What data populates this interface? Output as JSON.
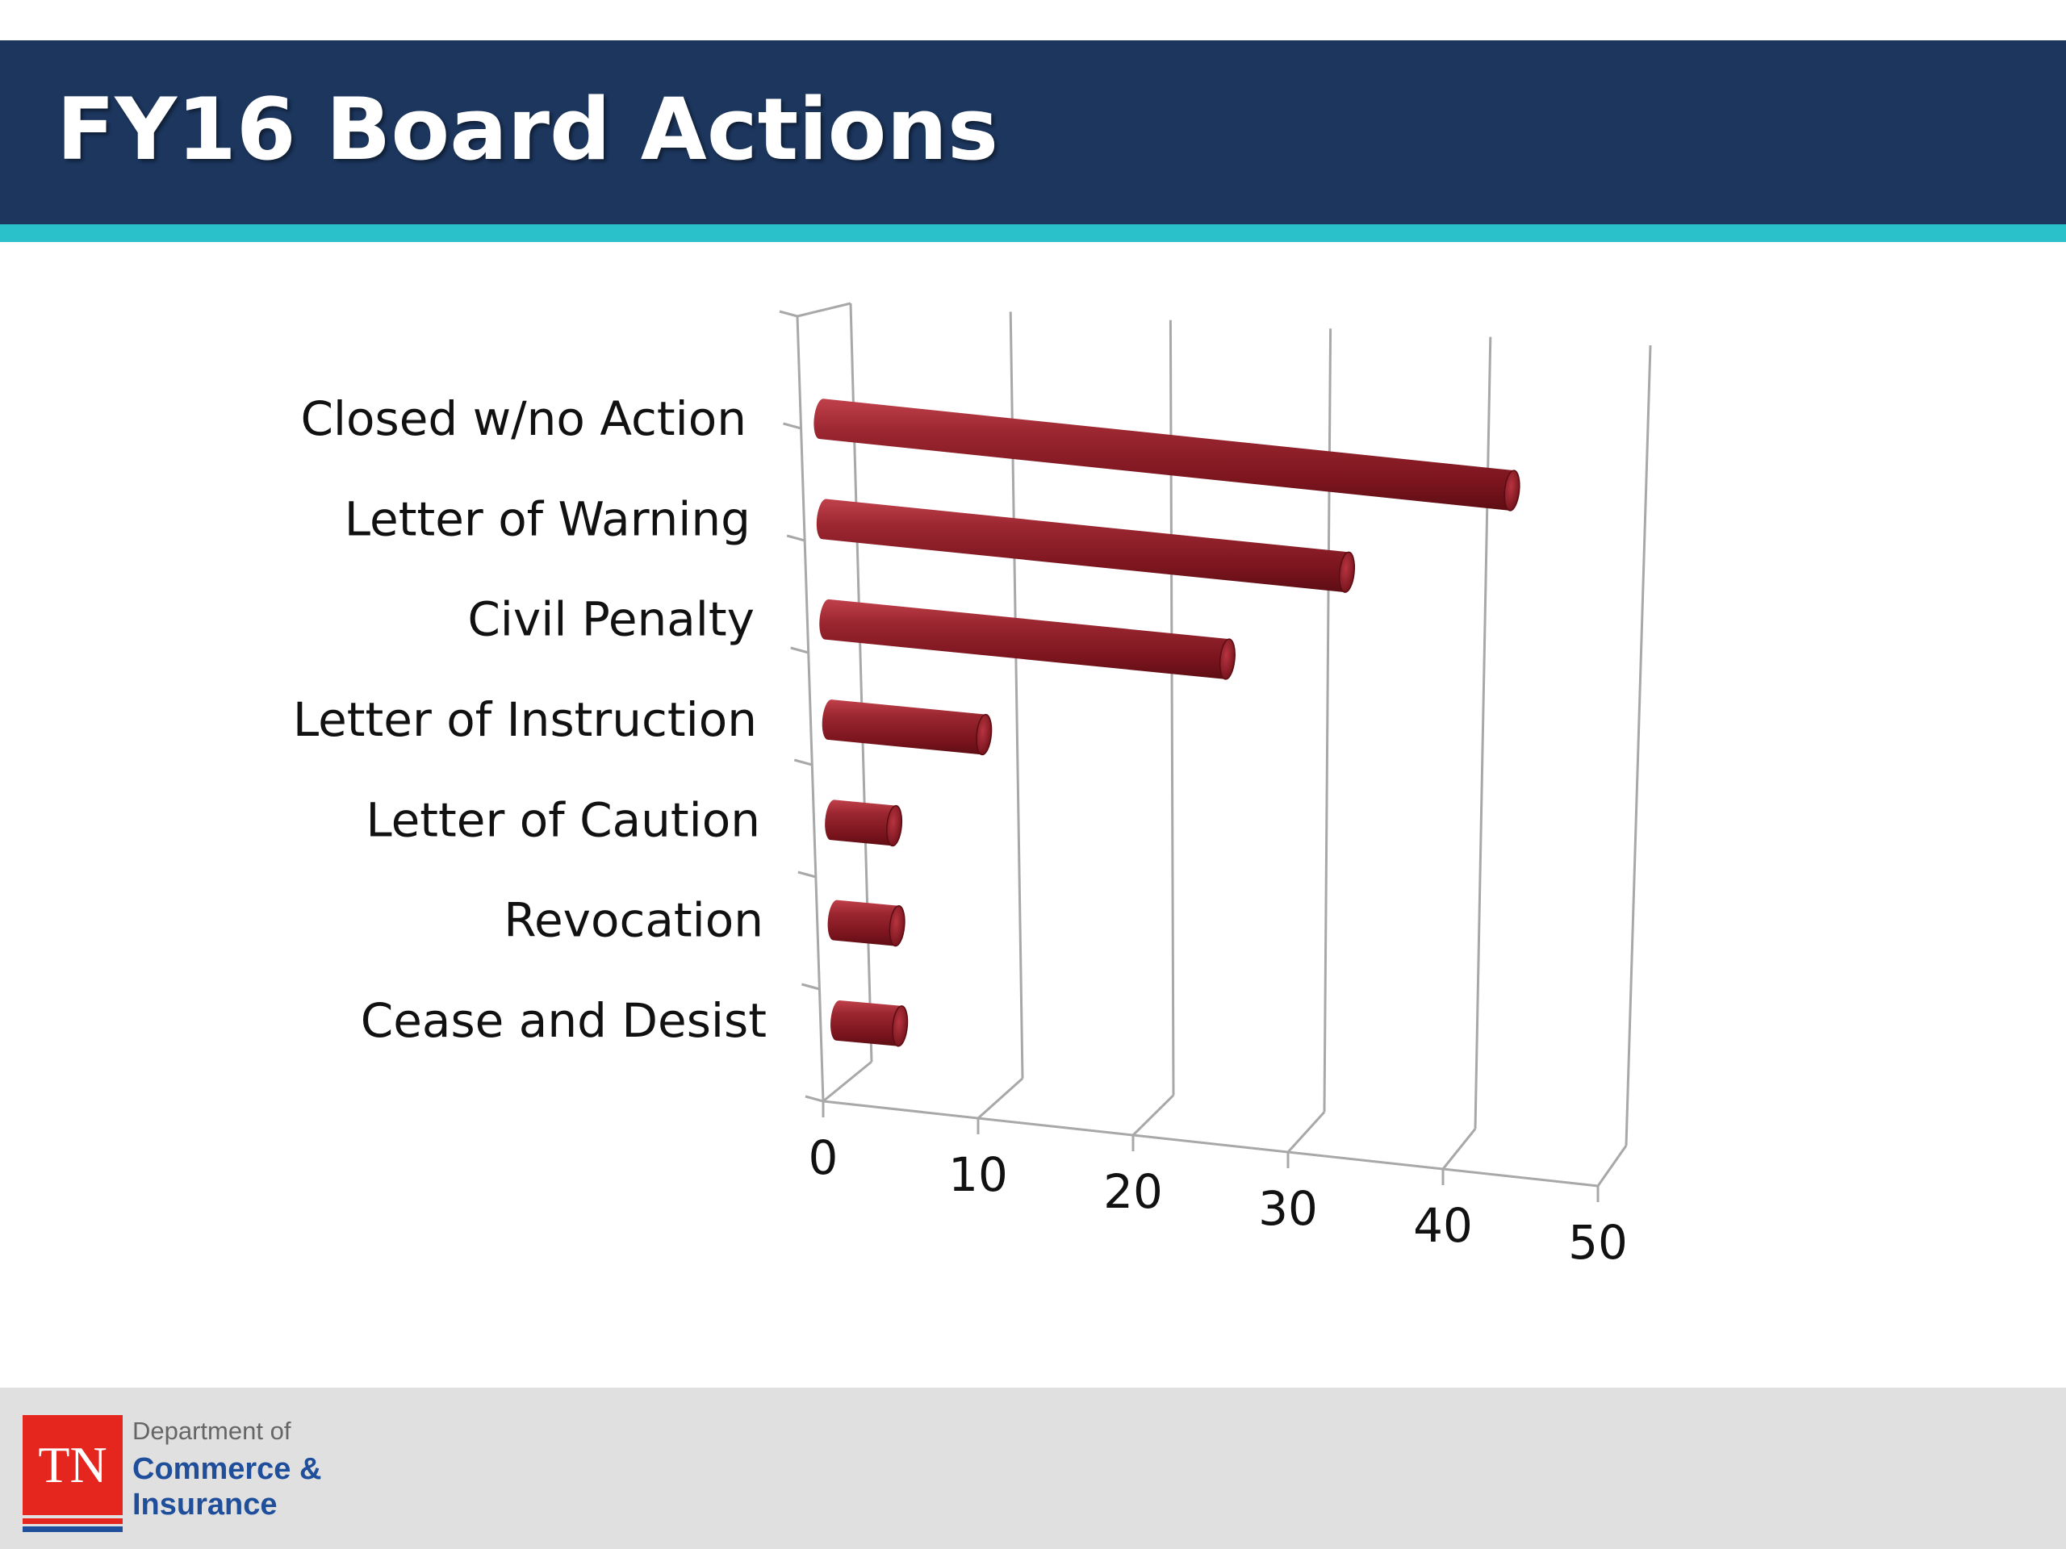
{
  "slide": {
    "title": "FY16 Board Actions"
  },
  "colors": {
    "header": "#1c365e",
    "accent": "#2bc1ca",
    "bar": "#8b1a24",
    "footer": "#e0e0e0",
    "logo_red": "#e4261f",
    "logo_blue": "#1f4e9a"
  },
  "chart_data": {
    "type": "bar",
    "orientation": "horizontal",
    "style": "3d-cylinder",
    "categories": [
      "Closed w/no Action",
      "Letter of Warning",
      "Civil Penalty",
      "Letter of Instruction",
      "Letter of Caution",
      "Revocation",
      "Cease and Desist"
    ],
    "values": [
      45,
      34,
      26,
      10,
      4,
      4,
      4
    ],
    "x_ticks": [
      "0",
      "10",
      "20",
      "30",
      "40",
      "50"
    ],
    "xlim": [
      0,
      50
    ],
    "title": "",
    "xlabel": "",
    "ylabel": "",
    "grid": true,
    "legend": "none"
  },
  "footer": {
    "logo_text": "TN",
    "dept_line1": "Department of",
    "dept_line2": "Commerce &",
    "dept_line3": "Insurance"
  }
}
